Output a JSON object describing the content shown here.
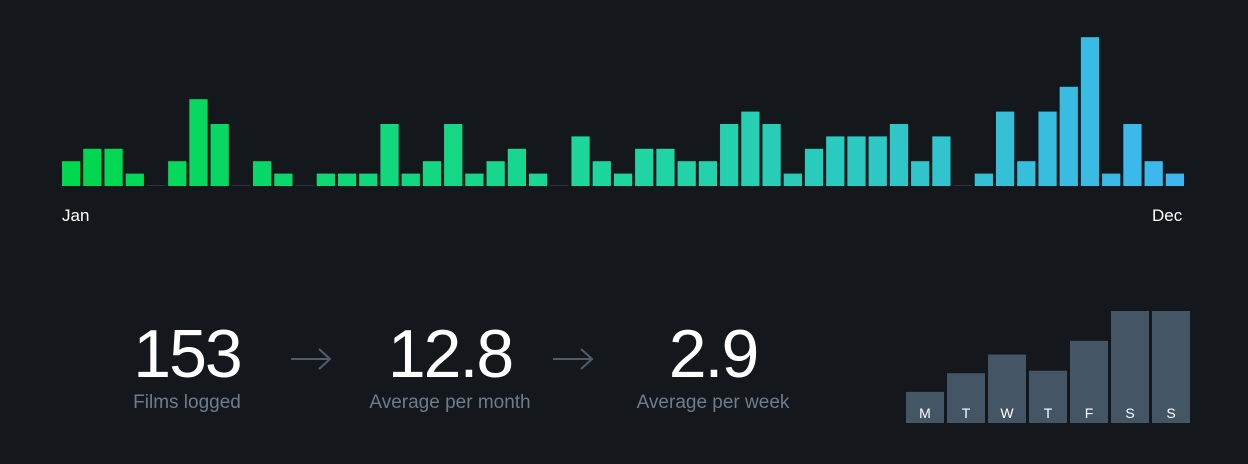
{
  "chart_data": [
    {
      "type": "bar",
      "x_start_label": "Jan",
      "x_end_label": "Dec",
      "values": [
        2,
        3,
        3,
        1,
        0,
        2,
        7,
        5,
        0,
        2,
        1,
        0,
        1,
        1,
        1,
        5,
        1,
        2,
        5,
        1,
        2,
        3,
        1,
        0,
        4,
        2,
        1,
        3,
        3,
        2,
        2,
        5,
        6,
        5,
        1,
        3,
        4,
        4,
        4,
        5,
        2,
        4,
        0,
        1,
        6,
        2,
        6,
        8,
        12,
        1,
        5,
        2,
        1
      ],
      "colors": {
        "start": "#00d84d",
        "mid": "#1ed6a0",
        "end": "#3fb6f0",
        "zero_tick": "#2c3440"
      }
    },
    {
      "type": "bar",
      "categories": [
        "M",
        "T",
        "W",
        "T",
        "F",
        "S",
        "S"
      ],
      "values": [
        2.5,
        4,
        5.5,
        4.2,
        6.6,
        9,
        9
      ],
      "ylim": [
        0,
        9
      ],
      "color": "#445566",
      "label_color": "#ffffff"
    }
  ],
  "stats": {
    "films": {
      "value": "153",
      "label": "Films logged"
    },
    "per_month": {
      "value": "12.8",
      "label": "Average per month"
    },
    "per_week": {
      "value": "2.9",
      "label": "Average per week"
    }
  },
  "arrow_color": "#4f5d6b"
}
